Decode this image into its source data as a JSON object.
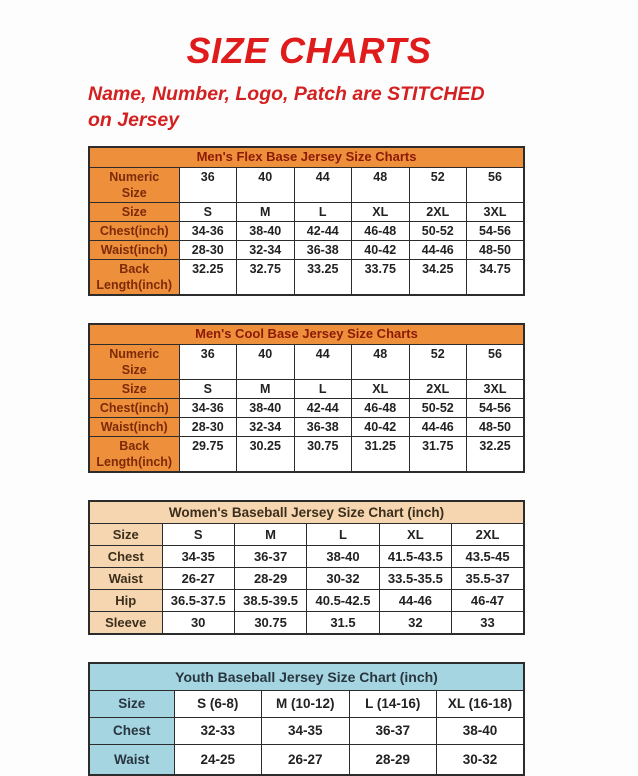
{
  "page": {
    "title": "SIZE CHARTS",
    "subtitle": "Name, Number, Logo, Patch are STITCHED on Jersey"
  },
  "colors": {
    "title-red": "#E01B1B",
    "subtitle-red": "#D42020",
    "orange": "#EE8F3C",
    "peach": "#F5D6B0",
    "blue": "#A5D5E1",
    "mens-title-text": "#8B1A06",
    "mens-label-text": "#7D2A08",
    "womens-text": "#3C2E1C",
    "youth-text": "#283640",
    "value-text": "#222222"
  },
  "tables": [
    {
      "id": "mens-flex-base",
      "theme": "orange",
      "title": "Men's Flex Base Jersey Size Charts",
      "rows": [
        {
          "label": "Numeric\nSize",
          "values": [
            "36",
            "40",
            "44",
            "48",
            "52",
            "56"
          ]
        },
        {
          "label": "Size",
          "values": [
            "S",
            "M",
            "L",
            "XL",
            "2XL",
            "3XL"
          ]
        },
        {
          "label": "Chest(inch)",
          "values": [
            "34-36",
            "38-40",
            "42-44",
            "46-48",
            "50-52",
            "54-56"
          ]
        },
        {
          "label": "Waist(inch)",
          "values": [
            "28-30",
            "32-34",
            "36-38",
            "40-42",
            "44-46",
            "48-50"
          ]
        },
        {
          "label": "Back\nLength(inch)",
          "values": [
            "32.25",
            "32.75",
            "33.25",
            "33.75",
            "34.25",
            "34.75"
          ]
        }
      ]
    },
    {
      "id": "mens-cool-base",
      "theme": "orange",
      "title": "Men's Cool Base Jersey Size Charts",
      "rows": [
        {
          "label": "Numeric\nSize",
          "values": [
            "36",
            "40",
            "44",
            "48",
            "52",
            "56"
          ]
        },
        {
          "label": "Size",
          "values": [
            "S",
            "M",
            "L",
            "XL",
            "2XL",
            "3XL"
          ]
        },
        {
          "label": "Chest(inch)",
          "values": [
            "34-36",
            "38-40",
            "42-44",
            "46-48",
            "50-52",
            "54-56"
          ]
        },
        {
          "label": "Waist(inch)",
          "values": [
            "28-30",
            "32-34",
            "36-38",
            "40-42",
            "44-46",
            "48-50"
          ]
        },
        {
          "label": "Back\nLength(inch)",
          "values": [
            "29.75",
            "30.25",
            "30.75",
            "31.25",
            "31.75",
            "32.25"
          ]
        }
      ]
    },
    {
      "id": "womens-baseball",
      "theme": "peach",
      "title": "Women's Baseball Jersey Size Chart (inch)",
      "rows": [
        {
          "label": "Size",
          "values": [
            "S",
            "M",
            "L",
            "XL",
            "2XL"
          ]
        },
        {
          "label": "Chest",
          "values": [
            "34-35",
            "36-37",
            "38-40",
            "41.5-43.5",
            "43.5-45"
          ]
        },
        {
          "label": "Waist",
          "values": [
            "26-27",
            "28-29",
            "30-32",
            "33.5-35.5",
            "35.5-37"
          ]
        },
        {
          "label": "Hip",
          "values": [
            "36.5-37.5",
            "38.5-39.5",
            "40.5-42.5",
            "44-46",
            "46-47"
          ]
        },
        {
          "label": "Sleeve",
          "values": [
            "30",
            "30.75",
            "31.5",
            "32",
            "33"
          ]
        }
      ]
    },
    {
      "id": "youth-baseball",
      "theme": "blue",
      "title": "Youth Baseball Jersey Size Chart (inch)",
      "rows": [
        {
          "label": "Size",
          "values": [
            "S (6-8)",
            "M (10-12)",
            "L (14-16)",
            "XL (16-18)"
          ]
        },
        {
          "label": "Chest",
          "values": [
            "32-33",
            "34-35",
            "36-37",
            "38-40"
          ]
        },
        {
          "label": "Waist",
          "values": [
            "24-25",
            "26-27",
            "28-29",
            "30-32"
          ]
        }
      ]
    }
  ],
  "layout_hints": {
    "label_col_width": {
      "orange": 90,
      "peach": 73,
      "blue": 85
    }
  }
}
